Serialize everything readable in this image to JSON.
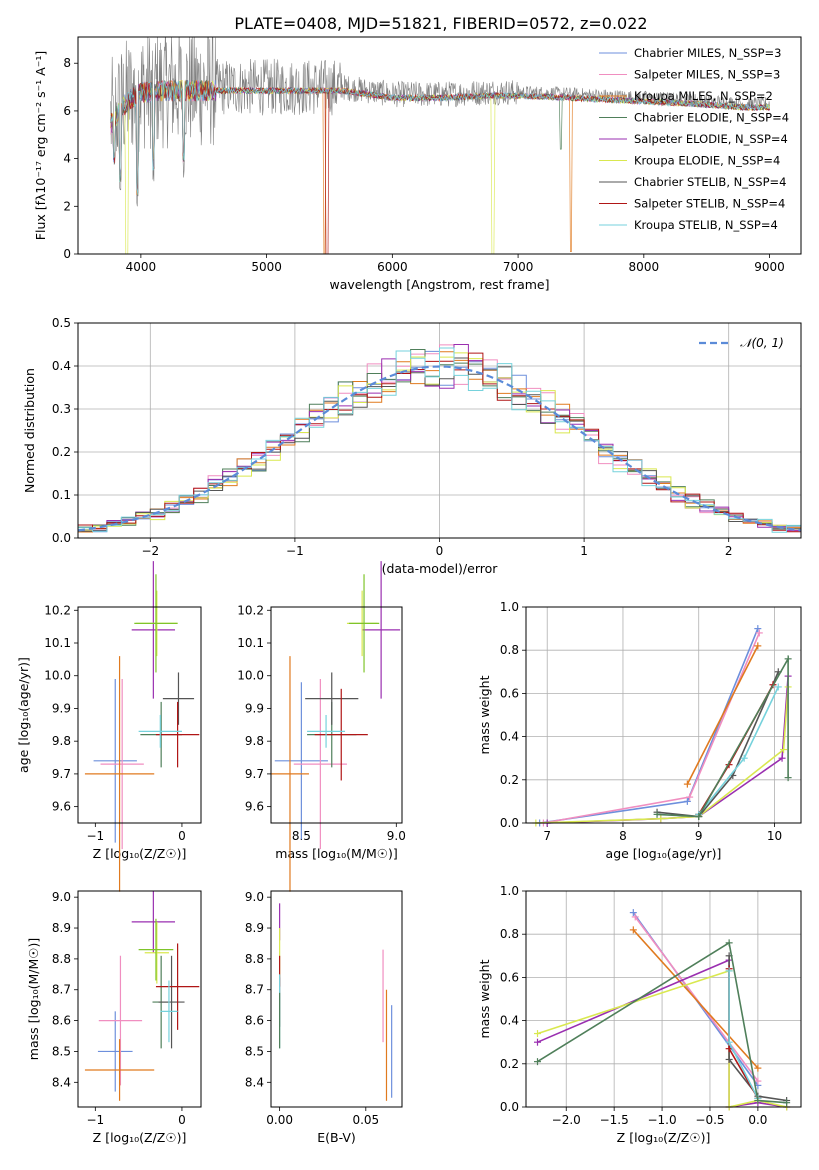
{
  "title": "PLATE=0408, MJD=51821, FIBERID=0572, z=0.022",
  "chart_data": [
    {
      "id": "spectrum",
      "type": "line",
      "xlabel": "wavelength [Angstrom, rest frame]",
      "ylabel": "Flux [fλ10⁻¹⁷ erg cm⁻² s⁻¹ A⁻¹]",
      "xlim": [
        3500,
        9250
      ],
      "ylim": [
        0,
        9.1
      ],
      "xticks": [
        4000,
        5000,
        6000,
        7000,
        8000,
        9000
      ],
      "yticks": [
        0,
        2,
        4,
        6,
        8
      ],
      "legend_position": "upper-right",
      "series": [
        {
          "name": "Chabrier MILES, N_SSP=3",
          "color": "#6d8fdc"
        },
        {
          "name": "Salpeter MILES, N_SSP=3",
          "color": "#f08ec0"
        },
        {
          "name": "Kroupa MILES, N_SSP=2",
          "color": "#e07a1f"
        },
        {
          "name": "Chabrier ELODIE, N_SSP=4",
          "color": "#4f7f5a"
        },
        {
          "name": "Salpeter ELODIE, N_SSP=4",
          "color": "#9a2fb0"
        },
        {
          "name": "Kroupa ELODIE, N_SSP=4",
          "color": "#d9e84f"
        },
        {
          "name": "Chabrier STELIB, N_SSP=4",
          "color": "#555555"
        },
        {
          "name": "Salpeter STELIB, N_SSP=4",
          "color": "#b01616"
        },
        {
          "name": "Kroupa STELIB, N_SSP=4",
          "color": "#76d2dc"
        }
      ],
      "data_series_color": "#808080",
      "continuum_points": [
        [
          3760,
          5.6
        ],
        [
          3900,
          6.6
        ],
        [
          4000,
          6.9
        ],
        [
          4200,
          7.0
        ],
        [
          4400,
          7.0
        ],
        [
          4700,
          7.0
        ],
        [
          5000,
          7.0
        ],
        [
          5300,
          7.0
        ],
        [
          5600,
          7.0
        ],
        [
          6000,
          6.7
        ],
        [
          6400,
          6.7
        ],
        [
          6800,
          6.8
        ],
        [
          7200,
          6.75
        ],
        [
          7600,
          6.65
        ],
        [
          8000,
          6.55
        ],
        [
          8400,
          6.45
        ],
        [
          8800,
          6.3
        ],
        [
          9000,
          6.3
        ]
      ],
      "dips": [
        {
          "x": 3790,
          "ymin": 3.2,
          "series": "all"
        },
        {
          "x": 3835,
          "ymin": 2.4,
          "series": "all"
        },
        {
          "x": 3970,
          "ymin": 1.8,
          "series": "all"
        },
        {
          "x": 4101,
          "ymin": 2.9,
          "series": "all"
        },
        {
          "x": 4340,
          "ymin": 3.2,
          "series": "all"
        },
        {
          "x": 3889,
          "ymin": 0.0,
          "series": "Kroupa ELODIE, N_SSP=4"
        },
        {
          "x": 5460,
          "ymin": 0.0,
          "series": "Kroupa MILES, N_SSP=2"
        },
        {
          "x": 5480,
          "ymin": 0.0,
          "series": "Salpeter STELIB, N_SSP=4"
        },
        {
          "x": 6800,
          "ymin": 0.0,
          "series": "Kroupa ELODIE, N_SSP=4"
        },
        {
          "x": 7340,
          "ymin": 4.4,
          "series": "Chabrier ELODIE, N_SSP=4"
        },
        {
          "x": 7420,
          "ymin": 0.1,
          "series": "Kroupa MILES, N_SSP=2"
        }
      ]
    },
    {
      "id": "residuals",
      "type": "histogram",
      "xlabel": "(data-model)/error",
      "ylabel": "Normed distribution",
      "xlim": [
        -2.5,
        2.5
      ],
      "ylim": [
        0,
        0.5
      ],
      "xticks": [
        -2,
        -1,
        0,
        1,
        2
      ],
      "yticks": [
        0.0,
        0.1,
        0.2,
        0.3,
        0.4,
        0.5
      ],
      "grid": true,
      "legend_position": "upper-right",
      "reference_curve": {
        "name": "𝒩(0, 1)",
        "mean": 0,
        "sigma": 1,
        "color": "#5b8bd8",
        "style": "dashed"
      },
      "bin_width": 0.1
    },
    {
      "id": "age_vs_Z",
      "type": "errorbar",
      "xlabel": "Z [log₁₀(Z/Z☉)]",
      "ylabel": "age  [log₁₀(age/yr)]",
      "xlim": [
        -1.2,
        0.22
      ],
      "ylim": [
        9.55,
        10.21
      ],
      "xticks": [
        -1,
        0
      ],
      "yticks": [
        9.6,
        9.7,
        9.8,
        9.9,
        10.0,
        10.1,
        10.2
      ],
      "points": [
        {
          "color": "#6d8fdc",
          "x": -0.77,
          "xerr": 0.25,
          "y": 9.74,
          "yerr": 0.25
        },
        {
          "color": "#f08ec0",
          "x": -0.69,
          "xerr": 0.25,
          "y": 9.73,
          "yerr": 0.26
        },
        {
          "color": "#e07a1f",
          "x": -0.72,
          "xerr": 0.4,
          "y": 9.7,
          "yerr": 0.36
        },
        {
          "color": "#4f7f5a",
          "x": -0.24,
          "xerr": 0.24,
          "y": 9.82,
          "yerr": 0.1
        },
        {
          "color": "#9a2fb0",
          "x": -0.33,
          "xerr": 0.25,
          "y": 10.14,
          "yerr": 0.21
        },
        {
          "color": "#d9e84f",
          "x": -0.29,
          "xerr": 0.24,
          "y": 10.16,
          "yerr": 0.1
        },
        {
          "color": "#555555",
          "x": -0.04,
          "xerr": 0.18,
          "y": 9.93,
          "yerr": 0.08
        },
        {
          "color": "#b01616",
          "x": -0.05,
          "xerr": 0.25,
          "y": 9.82,
          "yerr": 0.1
        },
        {
          "color": "#76d2dc",
          "x": -0.25,
          "xerr": 0.25,
          "y": 9.83,
          "yerr": 0.05
        },
        {
          "color": "#7fc42a",
          "x": -0.3,
          "xerr": 0.25,
          "y": 10.16,
          "yerr": 0.15
        }
      ]
    },
    {
      "id": "age_vs_mass",
      "type": "errorbar",
      "xlabel": "mass [log₁₀(M/M☉)]",
      "ylabel": "",
      "xlim": [
        8.34,
        9.03
      ],
      "ylim": [
        9.55,
        10.21
      ],
      "xticks": [
        8.5,
        9.0
      ],
      "yticks": [
        9.6,
        9.7,
        9.8,
        9.9,
        10.0,
        10.1,
        10.2
      ],
      "points": [
        {
          "color": "#6d8fdc",
          "x": 8.5,
          "xerr": 0.14,
          "y": 9.74,
          "yerr": 0.24
        },
        {
          "color": "#f08ec0",
          "x": 8.6,
          "xerr": 0.14,
          "y": 9.73,
          "yerr": 0.26
        },
        {
          "color": "#e07a1f",
          "x": 8.44,
          "xerr": 0.1,
          "y": 9.7,
          "yerr": 0.36
        },
        {
          "color": "#4f7f5a",
          "x": 8.66,
          "xerr": 0.13,
          "y": 9.82,
          "yerr": 0.1
        },
        {
          "color": "#9a2fb0",
          "x": 8.92,
          "xerr": 0.1,
          "y": 10.14,
          "yerr": 0.21
        },
        {
          "color": "#d9e84f",
          "x": 8.82,
          "xerr": 0.08,
          "y": 10.16,
          "yerr": 0.1
        },
        {
          "color": "#555555",
          "x": 8.66,
          "xerr": 0.14,
          "y": 9.93,
          "yerr": 0.08
        },
        {
          "color": "#b01616",
          "x": 8.71,
          "xerr": 0.14,
          "y": 9.82,
          "yerr": 0.14
        },
        {
          "color": "#76d2dc",
          "x": 8.63,
          "xerr": 0.1,
          "y": 9.83,
          "yerr": 0.05
        },
        {
          "color": "#7fc42a",
          "x": 8.83,
          "xerr": 0.08,
          "y": 10.16,
          "yerr": 0.15
        }
      ]
    },
    {
      "id": "weight_vs_age",
      "type": "line",
      "xlabel": "age  [log₁₀(age/yr)]",
      "ylabel": "mass weight",
      "xlim": [
        6.72,
        10.35
      ],
      "ylim": [
        0,
        1.0
      ],
      "xticks": [
        7,
        8,
        9,
        10
      ],
      "yticks": [
        0.0,
        0.2,
        0.4,
        0.6,
        0.8,
        1.0
      ],
      "grid": true,
      "series": [
        {
          "color": "#6d8fdc",
          "points": [
            [
              6.9,
              0.0
            ],
            [
              8.85,
              0.1
            ],
            [
              9.78,
              0.9
            ]
          ]
        },
        {
          "color": "#f08ec0",
          "points": [
            [
              6.95,
              0.0
            ],
            [
              8.88,
              0.12
            ],
            [
              9.8,
              0.88
            ]
          ]
        },
        {
          "color": "#e07a1f",
          "points": [
            [
              8.85,
              0.18
            ],
            [
              9.78,
              0.82
            ]
          ]
        },
        {
          "color": "#9a2fb0",
          "points": [
            [
              7.0,
              0.0
            ],
            [
              8.5,
              0.02
            ],
            [
              9.0,
              0.03
            ],
            [
              10.1,
              0.3
            ],
            [
              10.18,
              0.68
            ]
          ]
        },
        {
          "color": "#d9e84f",
          "points": [
            [
              6.85,
              0.0
            ],
            [
              8.5,
              0.02
            ],
            [
              9.0,
              0.03
            ],
            [
              10.12,
              0.34
            ],
            [
              10.18,
              0.63
            ]
          ]
        },
        {
          "color": "#555555",
          "points": [
            [
              8.45,
              0.05
            ],
            [
              9.0,
              0.03
            ],
            [
              9.45,
              0.22
            ],
            [
              10.05,
              0.7
            ]
          ]
        },
        {
          "color": "#b01616",
          "points": [
            [
              9.0,
              0.04
            ],
            [
              9.4,
              0.27
            ],
            [
              9.98,
              0.64
            ]
          ]
        },
        {
          "color": "#76d2dc",
          "points": [
            [
              9.0,
              0.04
            ],
            [
              9.6,
              0.3
            ],
            [
              10.05,
              0.63
            ]
          ]
        },
        {
          "color": "#4f7f5a",
          "points": [
            [
              8.45,
              0.04
            ],
            [
              9.0,
              0.03
            ],
            [
              10.18,
              0.76
            ],
            [
              10.18,
              0.21
            ]
          ]
        }
      ]
    },
    {
      "id": "mass_vs_Z",
      "type": "errorbar",
      "xlabel": "Z [log₁₀(Z/Z☉)]",
      "ylabel": "mass [log₁₀(M/M☉)]",
      "xlim": [
        -1.2,
        0.22
      ],
      "ylim": [
        8.32,
        9.02
      ],
      "xticks": [
        -1,
        0
      ],
      "yticks": [
        8.4,
        8.5,
        8.6,
        8.7,
        8.8,
        8.9,
        9.0
      ],
      "points": [
        {
          "color": "#6d8fdc",
          "x": -0.77,
          "xerr": 0.2,
          "y": 8.5,
          "yerr": 0.13
        },
        {
          "color": "#f08ec0",
          "x": -0.71,
          "xerr": 0.25,
          "y": 8.6,
          "yerr": 0.21
        },
        {
          "color": "#e07a1f",
          "x": -0.72,
          "xerr": 0.4,
          "y": 8.44,
          "yerr": 0.1
        },
        {
          "color": "#4f7f5a",
          "x": -0.24,
          "xerr": 0.1,
          "y": 8.66,
          "yerr": 0.15
        },
        {
          "color": "#9a2fb0",
          "x": -0.33,
          "xerr": 0.25,
          "y": 8.92,
          "yerr": 0.1
        },
        {
          "color": "#d9e84f",
          "x": -0.29,
          "xerr": 0.14,
          "y": 8.82,
          "yerr": 0.1
        },
        {
          "color": "#555555",
          "x": -0.12,
          "xerr": 0.15,
          "y": 8.66,
          "yerr": 0.15
        },
        {
          "color": "#b01616",
          "x": -0.05,
          "xerr": 0.25,
          "y": 8.71,
          "yerr": 0.14
        },
        {
          "color": "#76d2dc",
          "x": -0.15,
          "xerr": 0.1,
          "y": 8.63,
          "yerr": 0.1
        },
        {
          "color": "#7fc42a",
          "x": -0.3,
          "xerr": 0.2,
          "y": 8.83,
          "yerr": 0.1
        }
      ]
    },
    {
      "id": "mass_vs_EBV",
      "type": "errorbar",
      "xlabel": "E(B-V)",
      "ylabel": "",
      "xlim": [
        -0.005,
        0.071
      ],
      "ylim": [
        8.32,
        9.02
      ],
      "xticks": [
        0.0,
        0.05
      ],
      "yticks": [
        8.4,
        8.5,
        8.6,
        8.7,
        8.8,
        8.9,
        9.0
      ],
      "points": [
        {
          "color": "#6d8fdc",
          "x": 0.065,
          "xerr": 0.0,
          "y": 8.5,
          "yerr": 0.15
        },
        {
          "color": "#f08ec0",
          "x": 0.06,
          "xerr": 0.0,
          "y": 8.68,
          "yerr": 0.15
        },
        {
          "color": "#e07a1f",
          "x": 0.062,
          "xerr": 0.0,
          "y": 8.52,
          "yerr": 0.18
        },
        {
          "color": "#9a2fb0",
          "x": 0.0,
          "xerr": 0.0,
          "y": 8.92,
          "yerr": 0.06
        },
        {
          "color": "#d9e84f",
          "x": 0.0,
          "xerr": 0.0,
          "y": 8.82,
          "yerr": 0.08
        },
        {
          "color": "#555555",
          "x": 0.0,
          "xerr": 0.0,
          "y": 8.66,
          "yerr": 0.08
        },
        {
          "color": "#b01616",
          "x": 0.0,
          "xerr": 0.0,
          "y": 8.76,
          "yerr": 0.05
        },
        {
          "color": "#76d2dc",
          "x": 0.0,
          "xerr": 0.0,
          "y": 8.63,
          "yerr": 0.12
        },
        {
          "color": "#4f7f5a",
          "x": 0.0,
          "xerr": 0.0,
          "y": 8.6,
          "yerr": 0.09
        }
      ]
    },
    {
      "id": "weight_vs_Z",
      "type": "line",
      "xlabel": "Z [log₁₀(Z/Z☉)]",
      "ylabel": "mass weight",
      "xlim": [
        -2.42,
        0.45
      ],
      "ylim": [
        0,
        1.0
      ],
      "xticks": [
        -2.0,
        -1.5,
        -1.0,
        -0.5,
        0.0
      ],
      "yticks": [
        0.0,
        0.2,
        0.4,
        0.6,
        0.8,
        1.0
      ],
      "grid": true,
      "series": [
        {
          "color": "#6d8fdc",
          "points": [
            [
              -1.3,
              0.9
            ],
            [
              0.0,
              0.1
            ]
          ]
        },
        {
          "color": "#f08ec0",
          "points": [
            [
              -1.28,
              0.88
            ],
            [
              0.0,
              0.12
            ]
          ]
        },
        {
          "color": "#e07a1f",
          "points": [
            [
              -1.3,
              0.82
            ],
            [
              0.0,
              0.18
            ]
          ]
        },
        {
          "color": "#9a2fb0",
          "points": [
            [
              -2.3,
              0.3
            ],
            [
              -0.3,
              0.68
            ],
            [
              -0.3,
              0.0
            ],
            [
              0.0,
              0.02
            ],
            [
              0.3,
              0.0
            ]
          ]
        },
        {
          "color": "#d9e84f",
          "points": [
            [
              -2.3,
              0.34
            ],
            [
              -0.3,
              0.63
            ],
            [
              -0.3,
              0.0
            ],
            [
              0.0,
              0.03
            ],
            [
              0.3,
              0.0
            ]
          ]
        },
        {
          "color": "#555555",
          "points": [
            [
              -0.3,
              0.7
            ],
            [
              -0.3,
              0.22
            ],
            [
              0.0,
              0.05
            ],
            [
              0.3,
              0.03
            ]
          ]
        },
        {
          "color": "#b01616",
          "points": [
            [
              -0.3,
              0.64
            ],
            [
              -0.3,
              0.27
            ],
            [
              0.0,
              0.04
            ]
          ]
        },
        {
          "color": "#76d2dc",
          "points": [
            [
              -0.3,
              0.63
            ],
            [
              -0.3,
              0.3
            ],
            [
              0.0,
              0.04
            ]
          ]
        },
        {
          "color": "#4f7f5a",
          "points": [
            [
              -2.3,
              0.21
            ],
            [
              -0.3,
              0.76
            ],
            [
              0.0,
              0.03
            ],
            [
              0.3,
              0.02
            ]
          ]
        }
      ]
    }
  ]
}
